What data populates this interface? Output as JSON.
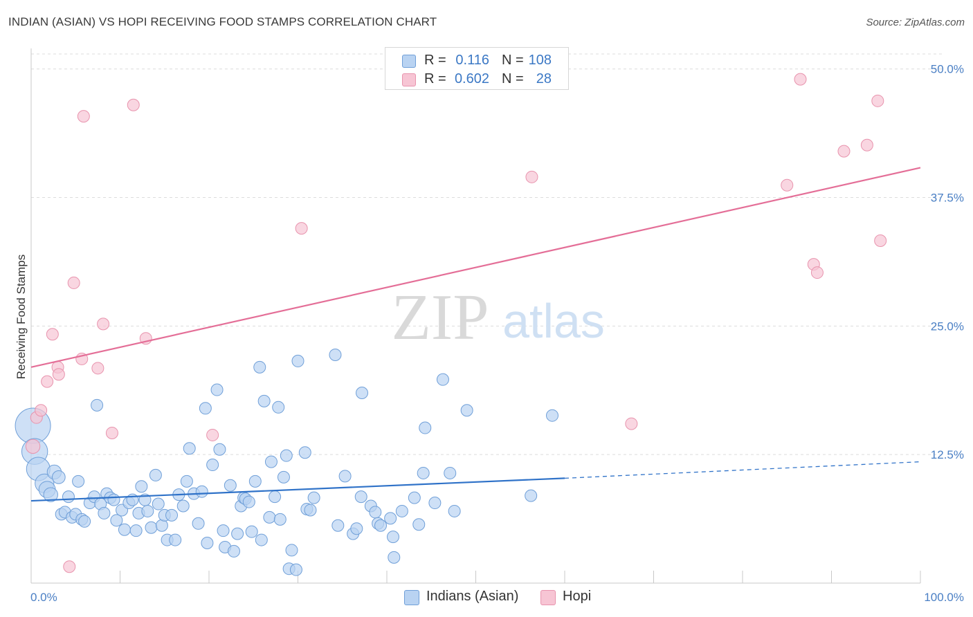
{
  "title": "INDIAN (ASIAN) VS HOPI RECEIVING FOOD STAMPS CORRELATION CHART",
  "source": "Source: ZipAtlas.com",
  "watermark": {
    "zip": "ZIP",
    "atlas": "atlas"
  },
  "colors": {
    "blue_fill": "#b9d3f2",
    "blue_stroke": "#6f9fd8",
    "blue_line": "#2f72c8",
    "pink_fill": "#f7c5d4",
    "pink_stroke": "#e893ad",
    "pink_line": "#e46e97",
    "tick_label": "#4a7fc4",
    "grid": "#dcdcdc"
  },
  "legend_top": {
    "rows": [
      {
        "r_label": "R =",
        "r_value": "0.116",
        "n_label": "N =",
        "n_value": "108",
        "color": "blue"
      },
      {
        "r_label": "R =",
        "r_value": "0.602",
        "n_label": "N =",
        "n_value": "28",
        "color": "pink"
      }
    ]
  },
  "legend_bottom": [
    {
      "label": "Indians (Asian)",
      "color": "blue"
    },
    {
      "label": "Hopi",
      "color": "pink"
    }
  ],
  "chart_data": {
    "type": "scatter",
    "title": "INDIAN (ASIAN) VS HOPI RECEIVING FOOD STAMPS CORRELATION CHART",
    "xlabel": "",
    "ylabel": "Receiving Food Stamps",
    "xlim": [
      0,
      100
    ],
    "ylim": [
      0,
      52
    ],
    "x_tick_labels": [
      "0.0%",
      "100.0%"
    ],
    "y_ticks": [
      12.5,
      25.0,
      37.5,
      50.0
    ],
    "y_tick_labels": [
      "12.5%",
      "25.0%",
      "37.5%",
      "50.0%"
    ],
    "grid": true,
    "legend_placement": "top-center",
    "series": [
      {
        "name": "Indians (Asian)",
        "color": "blue",
        "r": 0.116,
        "n": 108,
        "trend": {
          "x0": 0,
          "y0": 8.0,
          "x1": 60,
          "y1": 10.2,
          "dashed_to_x": 100,
          "dashed_to_y": 11.8
        },
        "points": [
          [
            0.2,
            15.3,
            3
          ],
          [
            0.4,
            12.8,
            2.2
          ],
          [
            0.8,
            11.1,
            2
          ],
          [
            1.5,
            9.7,
            1.6
          ],
          [
            1.8,
            9.1,
            1.4
          ],
          [
            2.2,
            8.6,
            1.2
          ],
          [
            2.6,
            10.8,
            1.2
          ],
          [
            3.1,
            10.3,
            1.1
          ],
          [
            3.4,
            6.7,
            1
          ],
          [
            3.8,
            6.9,
            1
          ],
          [
            4.2,
            8.4,
            1
          ],
          [
            4.6,
            6.4,
            1
          ],
          [
            5.0,
            6.7,
            1
          ],
          [
            5.3,
            9.9,
            1
          ],
          [
            5.7,
            6.2,
            1
          ],
          [
            6.0,
            6.0,
            1
          ],
          [
            6.6,
            7.8,
            1
          ],
          [
            7.1,
            8.4,
            1
          ],
          [
            7.4,
            17.3,
            1
          ],
          [
            7.8,
            7.7,
            1
          ],
          [
            8.2,
            6.8,
            1
          ],
          [
            8.5,
            8.7,
            1
          ],
          [
            8.9,
            8.3,
            1
          ],
          [
            9.3,
            8.1,
            1
          ],
          [
            9.6,
            6.1,
            1
          ],
          [
            10.2,
            7.1,
            1
          ],
          [
            10.5,
            5.2,
            1
          ],
          [
            11.0,
            7.8,
            1
          ],
          [
            11.4,
            8.1,
            1
          ],
          [
            11.8,
            5.1,
            1
          ],
          [
            12.1,
            6.8,
            1
          ],
          [
            12.4,
            9.4,
            1
          ],
          [
            12.8,
            8.1,
            1
          ],
          [
            13.1,
            7.0,
            1
          ],
          [
            13.5,
            5.4,
            1
          ],
          [
            14.0,
            10.5,
            1
          ],
          [
            14.3,
            7.7,
            1
          ],
          [
            14.7,
            5.6,
            1
          ],
          [
            15.0,
            6.6,
            1
          ],
          [
            15.3,
            4.2,
            1
          ],
          [
            15.8,
            6.6,
            1
          ],
          [
            16.2,
            4.2,
            1
          ],
          [
            16.6,
            8.6,
            1
          ],
          [
            17.1,
            7.5,
            1
          ],
          [
            17.5,
            9.9,
            1
          ],
          [
            17.8,
            13.1,
            1
          ],
          [
            18.3,
            8.7,
            1
          ],
          [
            18.8,
            5.8,
            1
          ],
          [
            19.2,
            8.9,
            1
          ],
          [
            19.6,
            17.0,
            1
          ],
          [
            19.8,
            3.9,
            1
          ],
          [
            20.4,
            11.5,
            1
          ],
          [
            20.9,
            18.8,
            1
          ],
          [
            21.2,
            13.0,
            1
          ],
          [
            21.6,
            5.1,
            1
          ],
          [
            21.8,
            3.5,
            1
          ],
          [
            22.4,
            9.5,
            1
          ],
          [
            22.8,
            3.1,
            1
          ],
          [
            23.2,
            4.8,
            1
          ],
          [
            23.6,
            7.5,
            1
          ],
          [
            23.9,
            8.3,
            1
          ],
          [
            24.1,
            8.2,
            1
          ],
          [
            24.5,
            7.9,
            1
          ],
          [
            24.8,
            5.0,
            1
          ],
          [
            25.2,
            9.9,
            1
          ],
          [
            25.9,
            4.2,
            1
          ],
          [
            25.7,
            21.0,
            1
          ],
          [
            26.2,
            17.7,
            1
          ],
          [
            26.8,
            6.4,
            1
          ],
          [
            27.0,
            11.8,
            1
          ],
          [
            27.4,
            8.4,
            1
          ],
          [
            27.8,
            17.1,
            1
          ],
          [
            28.0,
            6.2,
            1
          ],
          [
            28.4,
            10.3,
            1
          ],
          [
            28.7,
            12.4,
            1
          ],
          [
            29.0,
            1.4,
            1
          ],
          [
            29.3,
            3.2,
            1
          ],
          [
            29.8,
            1.3,
            1
          ],
          [
            30.0,
            21.6,
            1
          ],
          [
            30.8,
            12.7,
            1
          ],
          [
            31.0,
            7.2,
            1
          ],
          [
            31.4,
            7.1,
            1
          ],
          [
            31.8,
            8.3,
            1
          ],
          [
            34.2,
            22.2,
            1
          ],
          [
            34.5,
            5.6,
            1
          ],
          [
            35.3,
            10.4,
            1
          ],
          [
            36.2,
            4.8,
            1
          ],
          [
            36.6,
            5.3,
            1
          ],
          [
            37.1,
            8.4,
            1
          ],
          [
            37.2,
            18.5,
            1
          ],
          [
            38.2,
            7.5,
            1
          ],
          [
            38.7,
            6.9,
            1
          ],
          [
            39.0,
            5.8,
            1
          ],
          [
            39.3,
            5.6,
            1
          ],
          [
            40.4,
            6.3,
            1
          ],
          [
            40.7,
            4.5,
            1
          ],
          [
            40.8,
            2.5,
            1
          ],
          [
            41.7,
            7.0,
            1
          ],
          [
            43.1,
            8.3,
            1
          ],
          [
            43.6,
            5.7,
            1
          ],
          [
            44.1,
            10.7,
            1
          ],
          [
            44.3,
            15.1,
            1
          ],
          [
            45.4,
            7.8,
            1
          ],
          [
            46.3,
            19.8,
            1
          ],
          [
            47.1,
            10.7,
            1
          ],
          [
            47.6,
            7.0,
            1
          ],
          [
            49.0,
            16.8,
            1
          ],
          [
            56.2,
            8.5,
            1
          ],
          [
            58.6,
            16.3,
            1
          ]
        ]
      },
      {
        "name": "Hopi",
        "color": "pink",
        "r": 0.602,
        "n": 28,
        "trend": {
          "x0": 0,
          "y0": 21.0,
          "x1": 100,
          "y1": 40.4
        },
        "points": [
          [
            0.2,
            13.3,
            1.2
          ],
          [
            0.6,
            16.1,
            1
          ],
          [
            1.1,
            16.8,
            1
          ],
          [
            1.8,
            19.6,
            1
          ],
          [
            2.4,
            24.2,
            1
          ],
          [
            3.0,
            21.0,
            1
          ],
          [
            3.1,
            20.3,
            1
          ],
          [
            4.3,
            1.6,
            1
          ],
          [
            4.8,
            29.2,
            1
          ],
          [
            5.7,
            21.8,
            1
          ],
          [
            5.9,
            45.4,
            1
          ],
          [
            7.5,
            20.9,
            1
          ],
          [
            8.1,
            25.2,
            1
          ],
          [
            9.1,
            14.6,
            1
          ],
          [
            11.5,
            46.5,
            1
          ],
          [
            12.9,
            23.8,
            1
          ],
          [
            20.4,
            14.4,
            1
          ],
          [
            30.4,
            34.5,
            1
          ],
          [
            56.3,
            39.5,
            1
          ],
          [
            67.5,
            15.5,
            1
          ],
          [
            85.0,
            38.7,
            1
          ],
          [
            86.5,
            49.0,
            1
          ],
          [
            88.0,
            31.0,
            1
          ],
          [
            88.4,
            30.2,
            1
          ],
          [
            91.4,
            42.0,
            1
          ],
          [
            94.0,
            42.6,
            1
          ],
          [
            95.2,
            46.9,
            1
          ],
          [
            95.5,
            33.3,
            1
          ]
        ]
      }
    ]
  }
}
